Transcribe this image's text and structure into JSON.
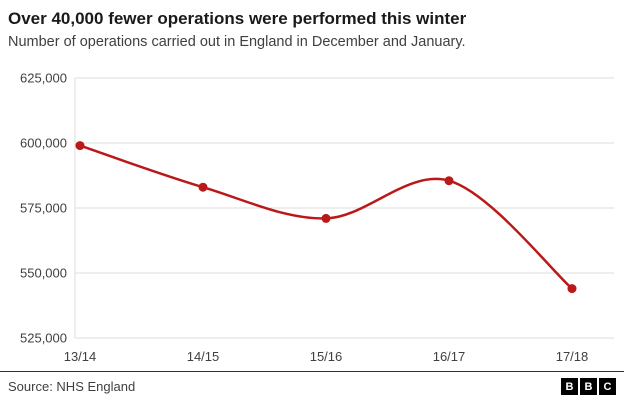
{
  "header": {
    "title": "Over 40,000 fewer operations were performed this winter",
    "subtitle": "Number of operations carried out in England in December and January."
  },
  "chart_data": {
    "type": "line",
    "title": "Over 40,000 fewer operations were performed this winter",
    "subtitle": "Number of operations carried out in England in December and January.",
    "x": [
      "13/14",
      "14/15",
      "15/16",
      "16/17",
      "17/18"
    ],
    "series": [
      {
        "name": "Number of operations",
        "values": [
          599000,
          583000,
          571000,
          585500,
          544000
        ]
      }
    ],
    "xlabel": "",
    "ylabel": "",
    "ylim": [
      525000,
      625000
    ],
    "y_ticks": [
      {
        "value": 625000,
        "label": "625,000"
      },
      {
        "value": 600000,
        "label": "600,000"
      },
      {
        "value": 575000,
        "label": "575,000"
      },
      {
        "value": 550000,
        "label": "550,000"
      },
      {
        "value": 525000,
        "label": "525,000"
      }
    ],
    "grid": true,
    "legend": false,
    "marker": "circle",
    "line_color": "#bb1919"
  },
  "colors": {
    "accent": "#bb1919",
    "grid": "#dcdcdc",
    "text": "#404040"
  },
  "footer": {
    "source": "Source: NHS England",
    "logo_letters": [
      "B",
      "B",
      "C"
    ]
  }
}
